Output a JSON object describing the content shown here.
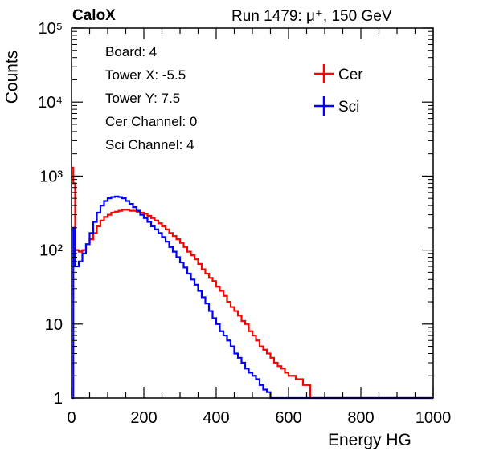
{
  "header": {
    "left": "CaloX",
    "right": "Run 1479:   μ⁺, 150 GeV"
  },
  "info": {
    "board": "Board: 4",
    "tower_x": "Tower X: -5.5",
    "tower_y": "Tower Y: 7.5",
    "cer_channel": "Cer Channel: 0",
    "sci_channel": "Sci Channel: 4"
  },
  "colors": {
    "cer": "#ff0000",
    "sci": "#0000ff"
  },
  "chart_data": {
    "type": "line",
    "xlabel": "Energy HG",
    "ylabel": "Counts",
    "xlim": [
      0,
      1000
    ],
    "ylim": [
      1,
      100000
    ],
    "ylog": true,
    "grid": false,
    "legend_position": "top-right",
    "x_ticks": [
      "0",
      "200",
      "400",
      "600",
      "800",
      "1000"
    ],
    "y_ticks": [
      "1",
      "10",
      "10²",
      "10³",
      "10⁴",
      "10⁵"
    ],
    "x": [
      0,
      5,
      10,
      20,
      30,
      40,
      50,
      60,
      70,
      80,
      90,
      100,
      110,
      120,
      130,
      140,
      150,
      160,
      170,
      180,
      190,
      200,
      210,
      220,
      230,
      240,
      250,
      260,
      270,
      280,
      290,
      300,
      310,
      320,
      330,
      340,
      350,
      360,
      370,
      380,
      390,
      400,
      410,
      420,
      430,
      440,
      450,
      460,
      470,
      480,
      490,
      500,
      510,
      520,
      530,
      540,
      550,
      560,
      570,
      580,
      590,
      600,
      620,
      640,
      660,
      680,
      700,
      720,
      740,
      760,
      780,
      800,
      820,
      840,
      860,
      880,
      900,
      1000
    ],
    "series": [
      {
        "name": "Cer",
        "color": "#ff0000",
        "values": [
          1300,
          800,
          100,
          95,
          100,
          120,
          140,
          170,
          210,
          250,
          280,
          300,
          320,
          330,
          340,
          350,
          350,
          340,
          340,
          330,
          320,
          310,
          290,
          270,
          250,
          230,
          210,
          190,
          170,
          155,
          140,
          125,
          110,
          95,
          85,
          75,
          65,
          55,
          48,
          42,
          38,
          32,
          28,
          24,
          20,
          17,
          15,
          13,
          11,
          10,
          8,
          7,
          6,
          5,
          4.5,
          4,
          3.5,
          3,
          2.7,
          2.5,
          2.2,
          2,
          1.8,
          1.5,
          1,
          1,
          1,
          1,
          1,
          1,
          1,
          1,
          1,
          1,
          1,
          1,
          1,
          1
        ]
      },
      {
        "name": "Sci",
        "color": "#0000ff",
        "values": [
          1,
          200,
          60,
          70,
          90,
          120,
          170,
          240,
          320,
          400,
          460,
          500,
          520,
          530,
          520,
          500,
          460,
          420,
          380,
          340,
          300,
          270,
          240,
          210,
          190,
          170,
          150,
          130,
          110,
          95,
          80,
          68,
          58,
          48,
          40,
          34,
          28,
          23,
          19,
          15,
          12,
          10,
          8,
          7,
          6,
          5,
          4,
          3.5,
          3,
          2.5,
          2.2,
          2,
          1.8,
          1.5,
          1.3,
          1.2,
          1,
          1,
          1,
          1,
          1,
          1,
          1,
          1,
          1,
          1,
          1,
          1,
          1,
          1,
          1,
          1,
          1,
          1,
          1,
          1,
          1,
          1
        ]
      }
    ]
  }
}
